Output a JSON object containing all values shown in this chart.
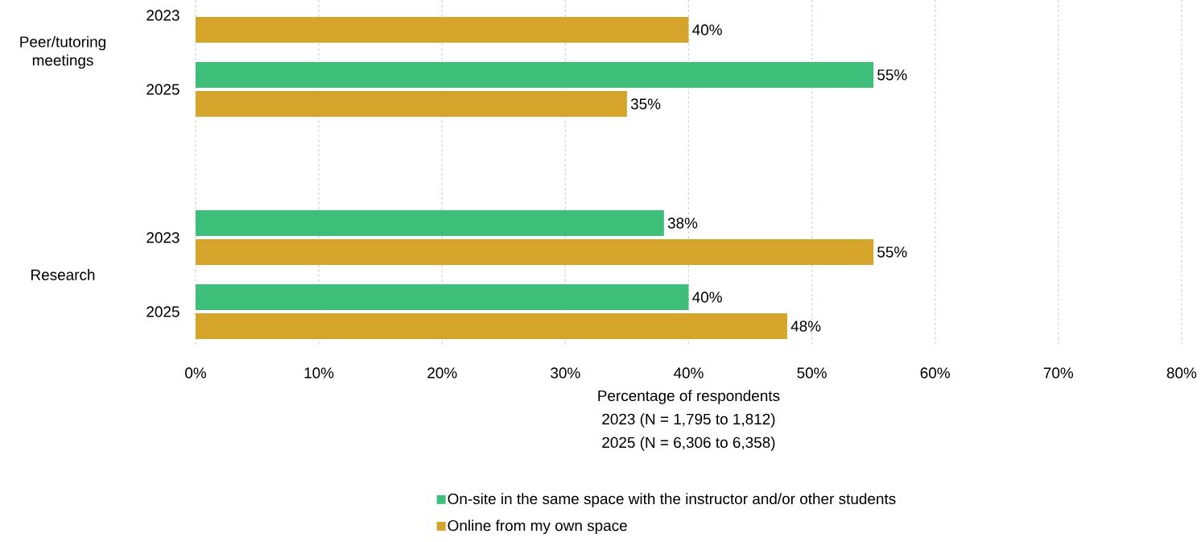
{
  "chart_data": {
    "type": "bar",
    "orientation": "horizontal",
    "categories": [
      "2023",
      "2025",
      "2023",
      "2025"
    ],
    "series": [
      {
        "name": "On-site in the same space with the instructor and/or other students",
        "color": "#3dbf7a",
        "values": [
          null,
          55,
          38,
          40
        ],
        "value_labels": [
          null,
          "55%",
          "38%",
          "40%"
        ]
      },
      {
        "name": "Online from my own space",
        "color": "#d4a52a",
        "values": [
          40,
          35,
          55,
          48
        ],
        "value_labels": [
          "40%",
          "35%",
          "55%",
          "48%"
        ]
      }
    ],
    "xlabel": "Percentage of respondents",
    "annotations": [
      "Peer/tutoring meetings",
      "Research",
      "2023 (N = 1,795 to 1,812)",
      "2025 (N = 6,306 to 6,358)"
    ],
    "xlim": [
      0,
      80
    ],
    "xticks": [
      {
        "value": 0,
        "label": "0%"
      },
      {
        "value": 10,
        "label": "10%"
      },
      {
        "value": 20,
        "label": "20%"
      },
      {
        "value": 30,
        "label": "30%"
      },
      {
        "value": 40,
        "label": "40%"
      },
      {
        "value": 50,
        "label": "50%"
      },
      {
        "value": 60,
        "label": "60%"
      },
      {
        "value": 70,
        "label": "70%"
      },
      {
        "value": 80,
        "label": "80%"
      }
    ],
    "grid": "x",
    "legend": "bottom"
  }
}
